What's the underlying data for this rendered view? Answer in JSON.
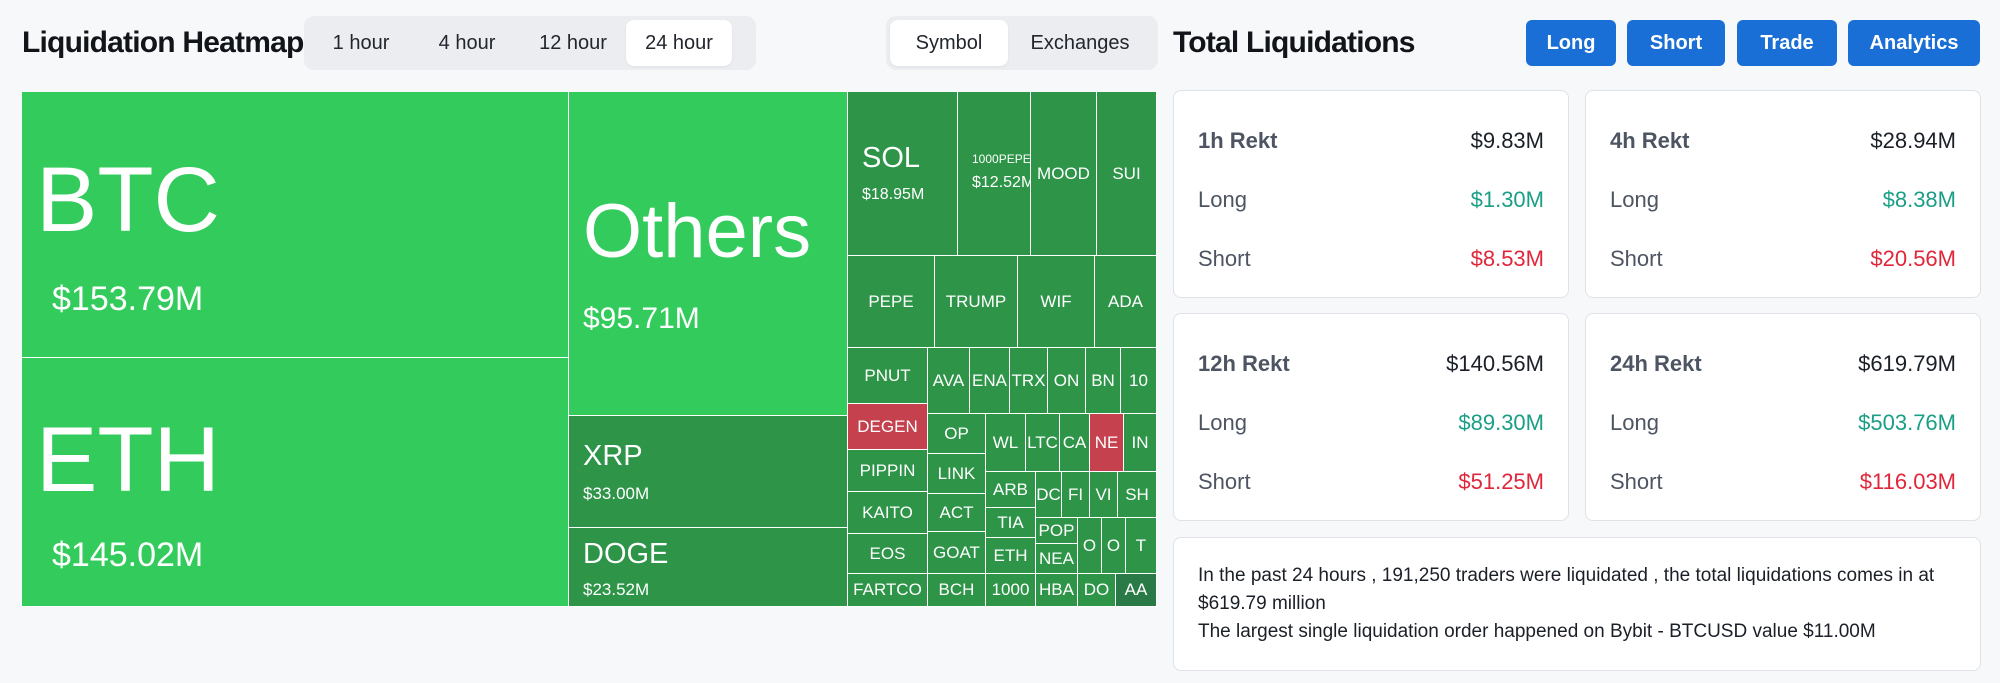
{
  "header": {
    "heatmap_title": "Liquidation Heatmap",
    "time_ranges": [
      "1 hour",
      "4 hour",
      "12 hour",
      "24 hour"
    ],
    "active_time_range": "24 hour",
    "view_modes": [
      "Symbol",
      "Exchanges"
    ],
    "active_view_mode": "Symbol",
    "total_title": "Total Liquidations",
    "actions": [
      "Long",
      "Short",
      "Trade",
      "Analytics"
    ]
  },
  "heatmap": {
    "tiles": [
      {
        "sym": "BTC",
        "val": "$153.79M"
      },
      {
        "sym": "ETH",
        "val": "$145.02M"
      },
      {
        "sym": "Others",
        "val": "$95.71M"
      },
      {
        "sym": "XRP",
        "val": "$33.00M"
      },
      {
        "sym": "DOGE",
        "val": "$23.52M"
      },
      {
        "sym": "SOL",
        "val": "$18.95M"
      },
      {
        "sym": "1000PEPE",
        "val": "$12.52M"
      },
      {
        "sym": "MOOD"
      },
      {
        "sym": "SUI"
      },
      {
        "sym": "PEPE"
      },
      {
        "sym": "TRUMP"
      },
      {
        "sym": "WIF"
      },
      {
        "sym": "ADA"
      },
      {
        "sym": "PNUT"
      },
      {
        "sym": "AVA"
      },
      {
        "sym": "ENA"
      },
      {
        "sym": "TRX"
      },
      {
        "sym": "ON"
      },
      {
        "sym": "BN"
      },
      {
        "sym": "10"
      },
      {
        "sym": "DEGEN"
      },
      {
        "sym": "OP"
      },
      {
        "sym": "WL"
      },
      {
        "sym": "LTC"
      },
      {
        "sym": "CA"
      },
      {
        "sym": "NE"
      },
      {
        "sym": "IN"
      },
      {
        "sym": "PIPPIN"
      },
      {
        "sym": "LINK"
      },
      {
        "sym": "ARB"
      },
      {
        "sym": "DC"
      },
      {
        "sym": "FI"
      },
      {
        "sym": "VI"
      },
      {
        "sym": "SH"
      },
      {
        "sym": "KAITO"
      },
      {
        "sym": "ACT"
      },
      {
        "sym": "TIA"
      },
      {
        "sym": "POP"
      },
      {
        "sym": "O"
      },
      {
        "sym": "O"
      },
      {
        "sym": "T"
      },
      {
        "sym": "EOS"
      },
      {
        "sym": "GOAT"
      },
      {
        "sym": "ETH"
      },
      {
        "sym": "NEA"
      },
      {
        "sym": "FARTCO"
      },
      {
        "sym": "BCH"
      },
      {
        "sym": "1000"
      },
      {
        "sym": "HBA"
      },
      {
        "sym": "DO"
      },
      {
        "sym": "AA"
      }
    ]
  },
  "stats": [
    {
      "title": "1h Rekt",
      "total": "$9.83M",
      "long_label": "Long",
      "long": "$1.30M",
      "short_label": "Short",
      "short": "$8.53M"
    },
    {
      "title": "4h Rekt",
      "total": "$28.94M",
      "long_label": "Long",
      "long": "$8.38M",
      "short_label": "Short",
      "short": "$20.56M"
    },
    {
      "title": "12h Rekt",
      "total": "$140.56M",
      "long_label": "Long",
      "long": "$89.30M",
      "short_label": "Short",
      "short": "$51.25M"
    },
    {
      "title": "24h Rekt",
      "total": "$619.79M",
      "long_label": "Long",
      "long": "$503.76M",
      "short_label": "Short",
      "short": "$116.03M"
    }
  ],
  "summary": {
    "line1": "In the past 24 hours , 191,250 traders were liquidated , the total liquidations comes in at $619.79 million",
    "line2": "The largest single liquidation order happened on Bybit - BTCUSD value $11.00M"
  },
  "colors": {
    "accent": "#1a6fd6",
    "tile_large": "#33cc5c",
    "tile_medium": "#2d9448",
    "tile_dark": "#2a7a47",
    "tile_short_dominant": "#c5414d",
    "long_text": "#1a9e86",
    "short_text": "#e0263a"
  }
}
